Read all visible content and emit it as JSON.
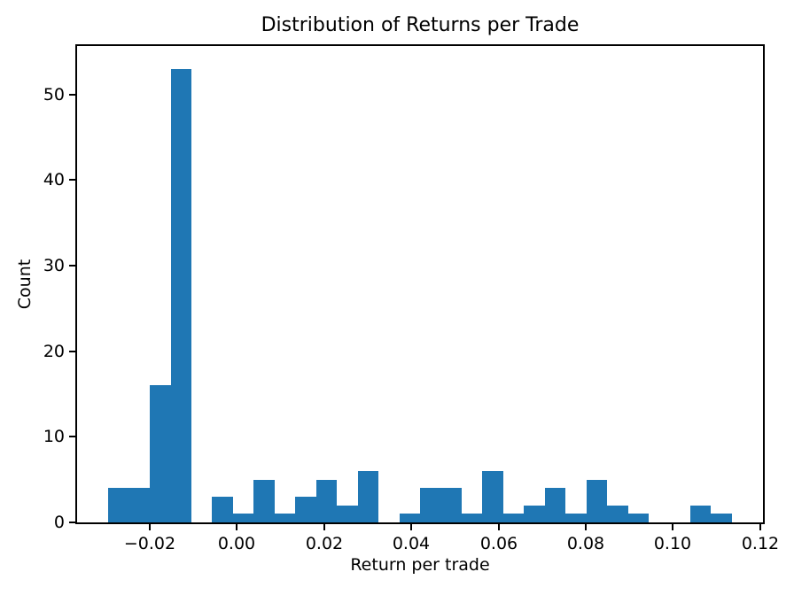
{
  "chart_data": {
    "type": "bar",
    "chart_kind": "histogram",
    "title": "Distribution of Returns per Trade",
    "xlabel": "Return per trade",
    "ylabel": "Count",
    "bin_start": -0.0295,
    "bin_width": 0.0047667,
    "num_bins": 30,
    "counts": [
      4,
      4,
      16,
      53,
      0,
      3,
      1,
      5,
      1,
      3,
      5,
      2,
      6,
      0,
      1,
      4,
      4,
      1,
      6,
      1,
      2,
      4,
      1,
      5,
      2,
      1,
      0,
      0,
      2,
      1
    ],
    "xlim": [
      -0.03665,
      0.12065
    ],
    "ylim": [
      0,
      55.65
    ],
    "x_ticks": [
      {
        "value": -0.02,
        "label": "−0.02"
      },
      {
        "value": 0.0,
        "label": "0.00"
      },
      {
        "value": 0.02,
        "label": "0.02"
      },
      {
        "value": 0.04,
        "label": "0.04"
      },
      {
        "value": 0.06,
        "label": "0.06"
      },
      {
        "value": 0.08,
        "label": "0.08"
      },
      {
        "value": 0.1,
        "label": "0.10"
      },
      {
        "value": 0.12,
        "label": "0.12"
      }
    ],
    "y_ticks": [
      {
        "value": 0,
        "label": "0"
      },
      {
        "value": 10,
        "label": "10"
      },
      {
        "value": 20,
        "label": "20"
      },
      {
        "value": 30,
        "label": "30"
      },
      {
        "value": 40,
        "label": "40"
      },
      {
        "value": 50,
        "label": "50"
      }
    ],
    "bar_color": "#1f77b4",
    "spine_color": "#000000",
    "text_color": "#000000",
    "background": "#ffffff",
    "legend": "none",
    "grid": false
  }
}
